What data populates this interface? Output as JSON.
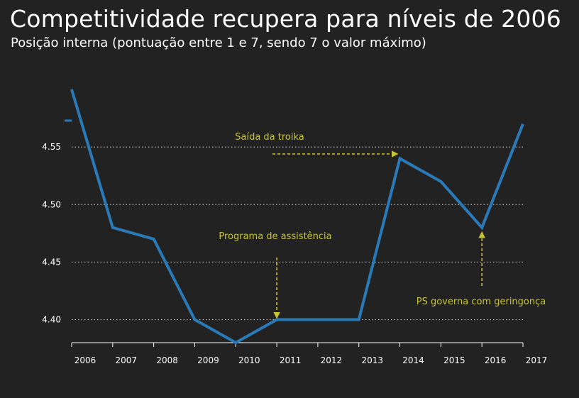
{
  "colors": {
    "background": "#222222",
    "text": "#ffffff",
    "line": "#2a7ab8",
    "grid": "#bbbbbb",
    "annotation": "#c8c431"
  },
  "chart_data": {
    "type": "line",
    "title": "Competitividade recupera para níveis de 2006",
    "subtitle": "Posição interna (pontuação entre 1 e 7, sendo 7 o valor máximo)",
    "xlabel": "",
    "ylabel": "",
    "x": [
      "2006",
      "2007",
      "2008",
      "2009",
      "2010",
      "2011",
      "2012",
      "2013",
      "2014",
      "2015",
      "2016",
      "2017"
    ],
    "series": [
      {
        "values": [
          4.6,
          4.48,
          4.47,
          4.4,
          4.38,
          4.4,
          4.4,
          4.4,
          4.54,
          4.52,
          4.48,
          4.57
        ]
      }
    ],
    "ylim": [
      4.38,
      4.605
    ],
    "yticks": [
      "4.40",
      "4.45",
      "4.50",
      "4.55"
    ],
    "ytick_values": [
      4.4,
      4.45,
      4.5,
      4.55
    ],
    "grid": "horizontal dotted",
    "legend": "none",
    "annotations": [
      {
        "text": "Saída da troika",
        "points_to": "2014",
        "arrow": "right"
      },
      {
        "text": "Programa de assistência",
        "points_to": "2011",
        "arrow": "down"
      },
      {
        "text": "PS governa com geringonça",
        "points_to": "2016",
        "arrow": "up"
      }
    ]
  }
}
